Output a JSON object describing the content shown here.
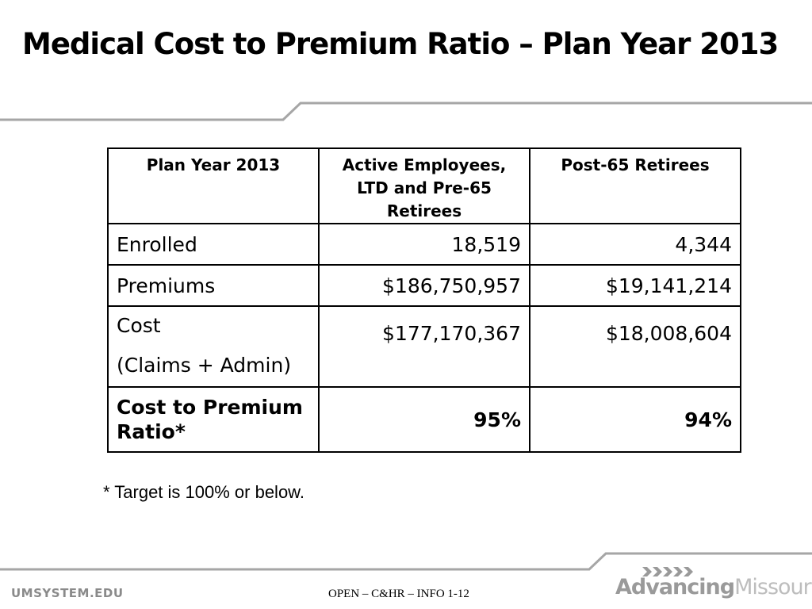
{
  "slide": {
    "title": "Medical Cost to Premium Ratio – Plan Year 2013",
    "footnote": "* Target is 100% or below."
  },
  "table": {
    "headers": [
      "Plan Year 2013",
      "Active Employees, LTD and Pre-65 Retirees",
      "Post-65 Retirees"
    ],
    "rows": [
      {
        "label": "Enrolled",
        "active": "18,519",
        "post65": "4,344"
      },
      {
        "label": "Premiums",
        "active": "$186,750,957",
        "post65": "$19,141,214"
      },
      {
        "label": "Cost",
        "label_sub": "(Claims + Admin)",
        "active": "$177,170,367",
        "post65": "$18,008,604"
      },
      {
        "label": "Cost to Premium Ratio*",
        "active": "95%",
        "post65": "94%"
      }
    ]
  },
  "footer": {
    "site": "UMSYSTEM.EDU",
    "info": "OPEN – C&HR – INFO 1-12",
    "brand_part1": "Advancing",
    "brand_part2": "Missouri"
  },
  "colors": {
    "rule": "#a6a6a6",
    "footer_text": "#8a8a8a",
    "brand_dark": "#9a9a9a",
    "brand_light": "#bdbdbd"
  }
}
